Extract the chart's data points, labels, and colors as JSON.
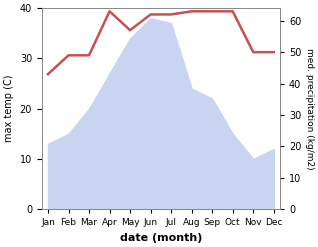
{
  "months": [
    "Jan",
    "Feb",
    "Mar",
    "Apr",
    "May",
    "Jun",
    "Jul",
    "Aug",
    "Sep",
    "Oct",
    "Nov",
    "Dec"
  ],
  "temperature": [
    13,
    15,
    20,
    27,
    34,
    38,
    37,
    24,
    22,
    15,
    10,
    12
  ],
  "precipitation": [
    43,
    49,
    49,
    63,
    57,
    62,
    62,
    63,
    63,
    63,
    50,
    50
  ],
  "precip_color": "#c85050",
  "fill_color": "#c8d4f0",
  "fill_edge_color": "#a0b8e8",
  "temp_ylim": [
    0,
    40
  ],
  "temp_yticks": [
    0,
    10,
    20,
    30,
    40
  ],
  "precip_ylim": [
    0,
    64
  ],
  "precip_yticks": [
    0,
    10,
    20,
    30,
    40,
    50,
    60
  ],
  "xlabel": "date (month)",
  "ylabel_left": "max temp (C)",
  "ylabel_right": "med. precipitation (kg/m2)",
  "bg_color": "#ffffff"
}
